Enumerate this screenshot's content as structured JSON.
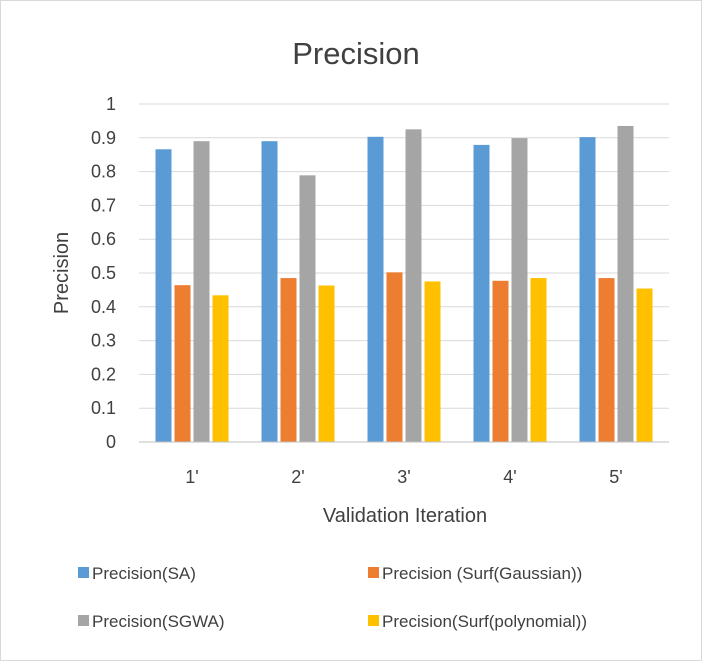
{
  "chart_data": {
    "type": "bar",
    "title": "Precision",
    "xlabel": "Validation Iteration",
    "ylabel": "Precision",
    "categories": [
      "1'",
      "2'",
      "3'",
      "4'",
      "5'"
    ],
    "ylim": [
      0,
      1
    ],
    "yticks": [
      "0",
      "0.1",
      "0.2",
      "0.3",
      "0.4",
      "0.5",
      "0.6",
      "0.7",
      "0.8",
      "0.9",
      "1"
    ],
    "grid": true,
    "legend_position": "bottom",
    "series": [
      {
        "name": "Precision(SA)",
        "color": "#5B9BD5",
        "values": [
          0.866,
          0.89,
          0.903,
          0.879,
          0.902
        ]
      },
      {
        "name": "Precision (Surf(Gaussian))",
        "color": "#ED7D31",
        "values": [
          0.464,
          0.485,
          0.502,
          0.477,
          0.485
        ]
      },
      {
        "name": "Precision(SGWA)",
        "color": "#A5A5A5",
        "values": [
          0.89,
          0.789,
          0.925,
          0.899,
          0.935
        ]
      },
      {
        "name": "Precision(Surf(polynomial))",
        "color": "#FFC000",
        "values": [
          0.434,
          0.463,
          0.475,
          0.485,
          0.454
        ]
      }
    ]
  }
}
